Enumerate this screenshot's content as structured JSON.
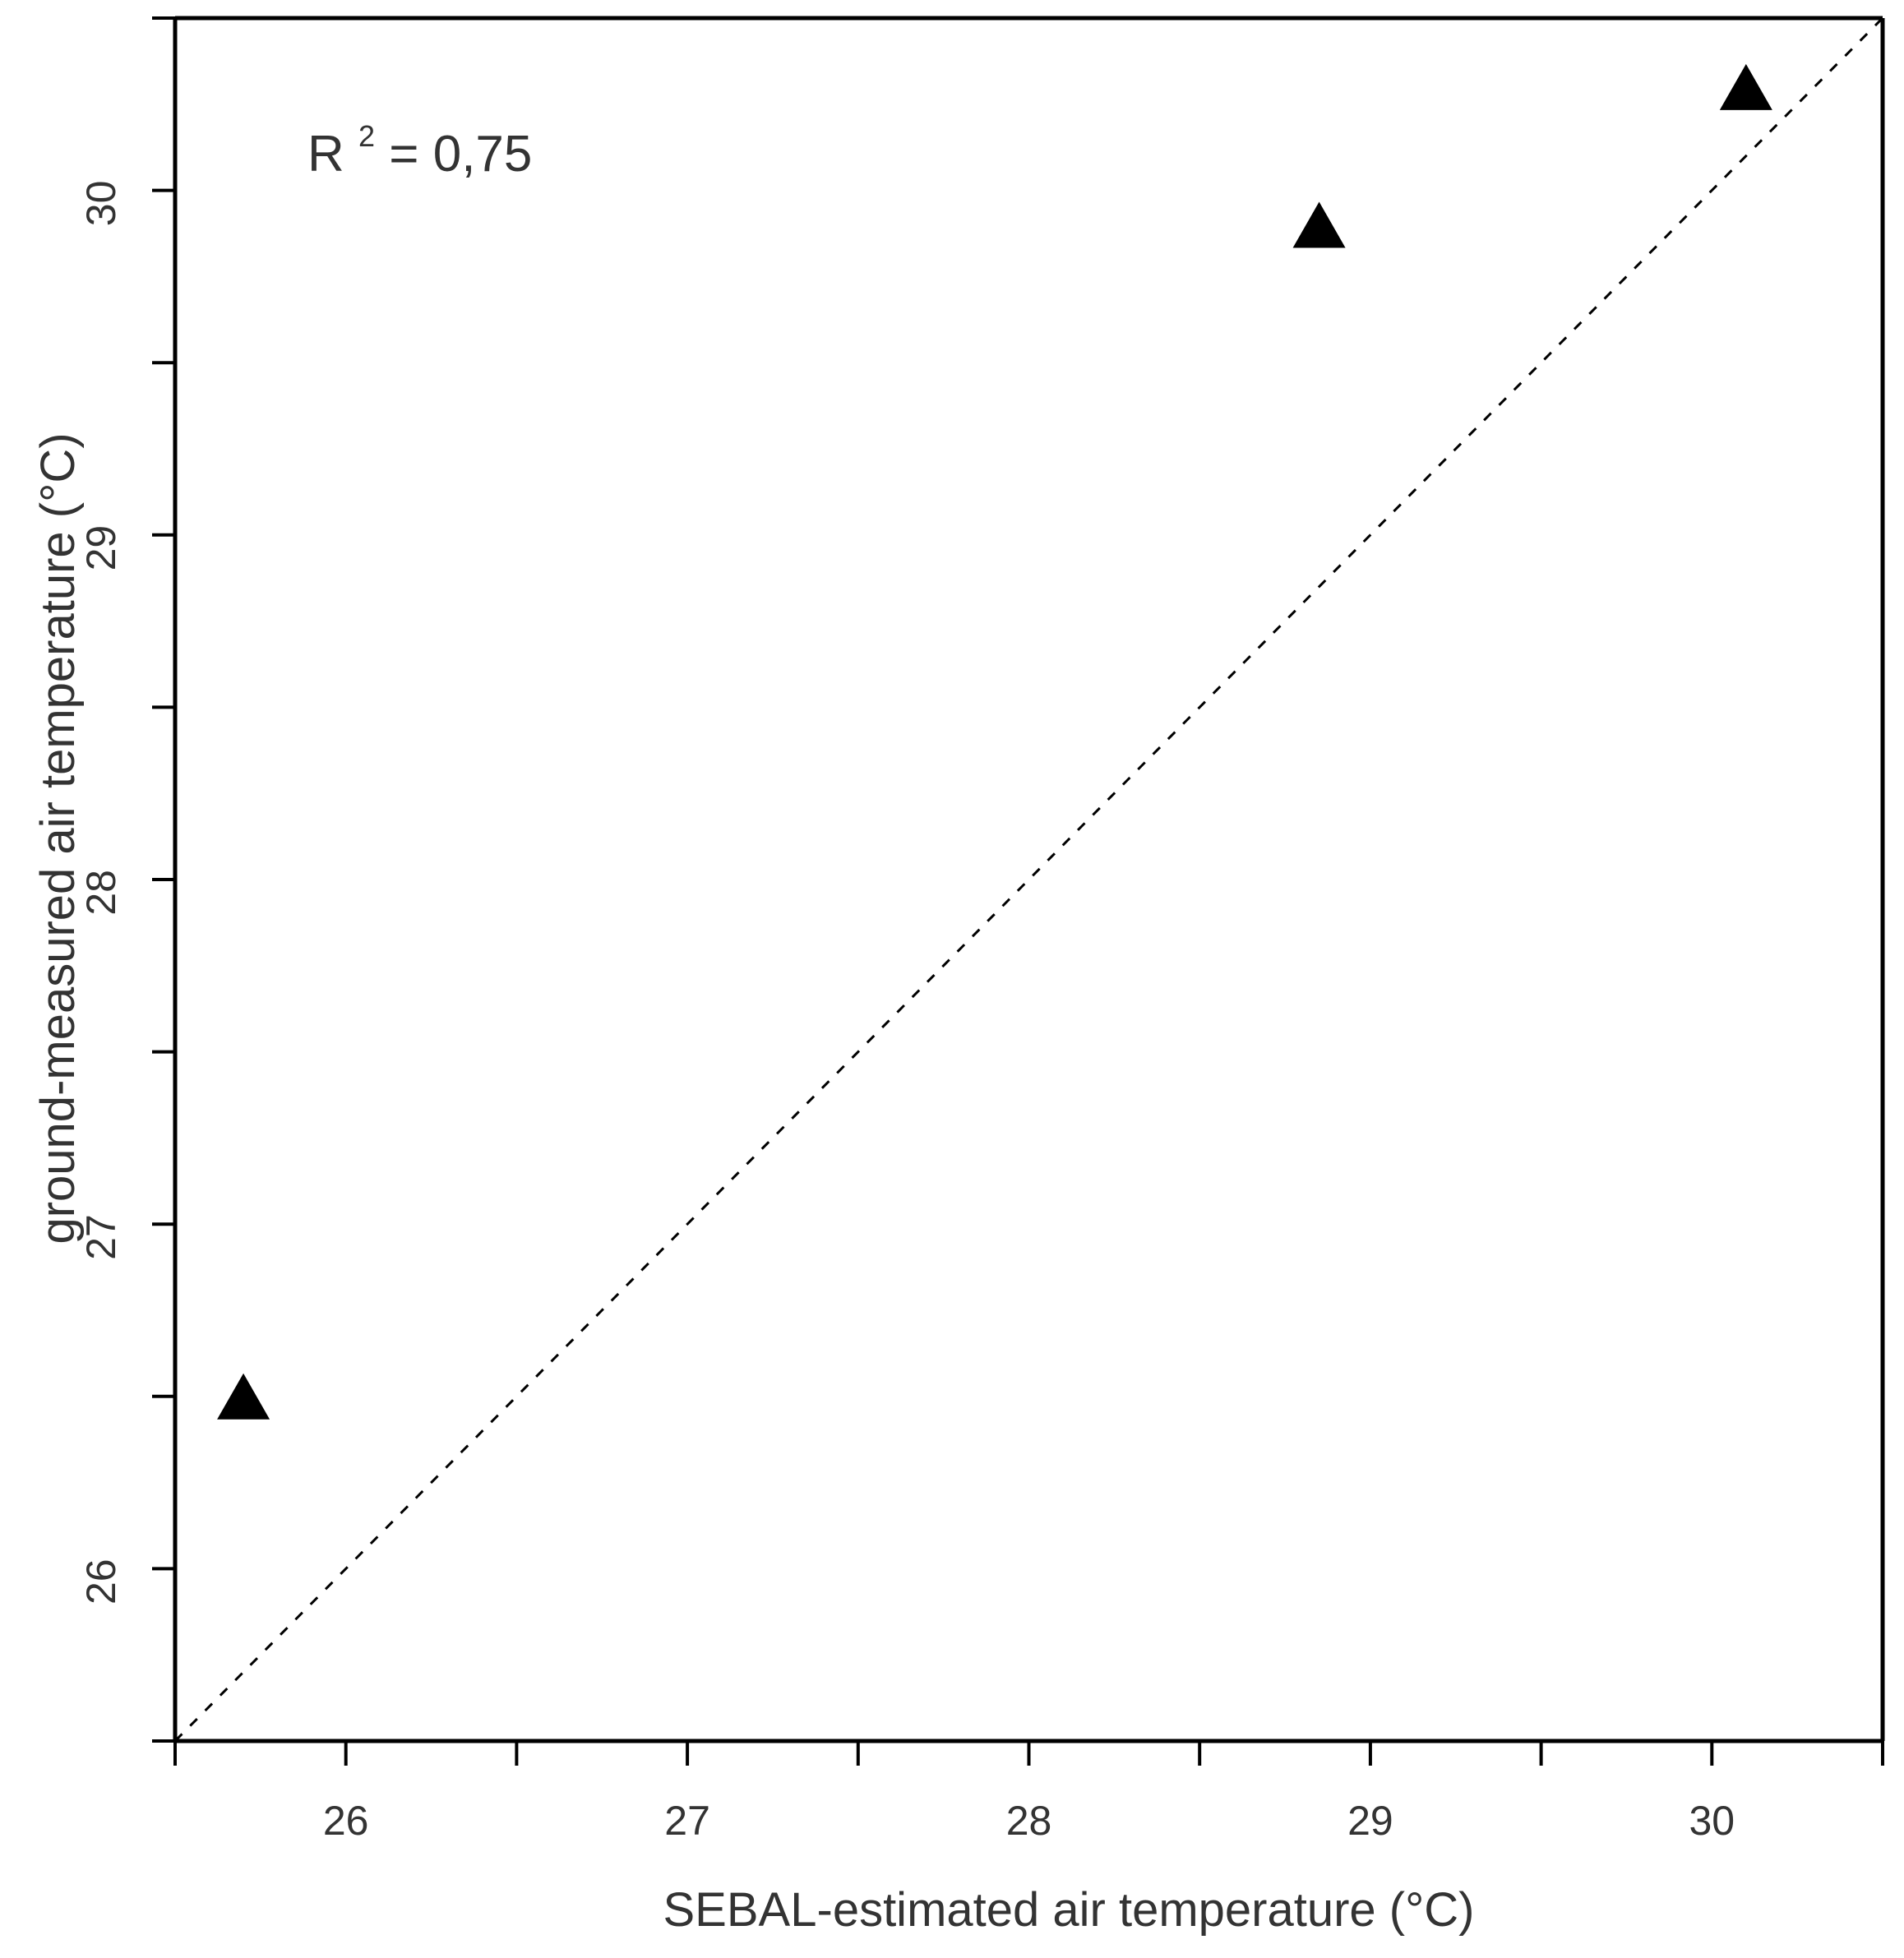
{
  "chart_data": {
    "type": "scatter",
    "title": "",
    "xlabel": "SEBAL-estimated air temperature (°C)",
    "ylabel": "ground-measured air temperature (°C)",
    "xlim": [
      25.5,
      30.5
    ],
    "ylim": [
      25.5,
      30.5
    ],
    "x_ticks": [
      26,
      27,
      28,
      29,
      30
    ],
    "y_ticks": [
      26,
      27,
      28,
      29,
      30
    ],
    "x_tick_labels": [
      "26",
      "27",
      "28",
      "29",
      "30"
    ],
    "y_tick_labels": [
      "26",
      "27",
      "28",
      "29",
      "30"
    ],
    "grid": false,
    "legend": "none",
    "reference_line": "1:1",
    "marker": "triangle",
    "marker_color": "#000000",
    "series": [
      {
        "points": [
          {
            "x": 25.7,
            "y": 26.5
          },
          {
            "x": 28.85,
            "y": 29.9
          },
          {
            "x": 30.1,
            "y": 30.3
          }
        ]
      }
    ],
    "annotation": {
      "prefix": "R",
      "superscript": "2",
      "suffix": "= 0,75"
    }
  }
}
